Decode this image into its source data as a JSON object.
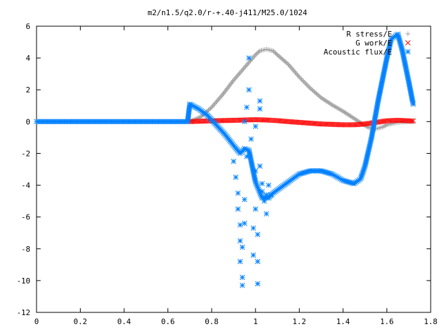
{
  "chart_data": {
    "type": "scatter",
    "title": "m2/n1.5/q2.0/r-+.40-j411/M25.0/1024",
    "xlabel": "",
    "ylabel": "",
    "xlim": [
      0,
      1.8
    ],
    "ylim": [
      -12,
      6
    ],
    "x_ticks": [
      "0",
      "0.2",
      "0.4",
      "0.6",
      "0.8",
      "1",
      "1.2",
      "1.4",
      "1.6",
      "1.8"
    ],
    "y_ticks": [
      "6",
      "4",
      "2",
      "0",
      "-2",
      "-4",
      "-6",
      "-8",
      "-10",
      "-12"
    ],
    "grid": false,
    "legend_position": "top-right",
    "series": [
      {
        "name": "R stress/E",
        "marker": "plus",
        "color": "#a0a0a0",
        "x": [
          0.7,
          0.75,
          0.8,
          0.85,
          0.9,
          0.95,
          1.0,
          1.02,
          1.05,
          1.08,
          1.1,
          1.15,
          1.2,
          1.25,
          1.3,
          1.35,
          1.4,
          1.45,
          1.5,
          1.52,
          1.55,
          1.58,
          1.6,
          1.65,
          1.7,
          1.72
        ],
        "y": [
          0.0,
          0.3,
          0.9,
          1.7,
          2.6,
          3.4,
          4.2,
          4.45,
          4.55,
          4.45,
          4.2,
          3.6,
          2.8,
          2.1,
          1.5,
          1.05,
          0.65,
          0.2,
          -0.25,
          -0.4,
          -0.45,
          -0.35,
          -0.2,
          -0.05,
          0.0,
          0.0
        ]
      },
      {
        "name": "G work/E",
        "marker": "cross",
        "color": "#ff0000",
        "x": [
          0.7,
          0.8,
          0.9,
          0.95,
          1.0,
          1.05,
          1.1,
          1.15,
          1.2,
          1.3,
          1.4,
          1.45,
          1.5,
          1.55,
          1.6,
          1.65,
          1.7,
          1.72
        ],
        "y": [
          0.0,
          0.05,
          0.08,
          0.1,
          0.12,
          0.1,
          0.06,
          0.0,
          -0.05,
          -0.15,
          -0.2,
          -0.2,
          -0.15,
          -0.05,
          0.05,
          0.08,
          0.05,
          0.04
        ]
      },
      {
        "name": "Acoustic flux/E",
        "marker": "star",
        "color": "#0080ff",
        "x": [
          0.0,
          0.1,
          0.2,
          0.3,
          0.4,
          0.5,
          0.6,
          0.69,
          0.7,
          0.74,
          0.78,
          0.82,
          0.86,
          0.9,
          0.93,
          0.95,
          0.97,
          1.0,
          1.03,
          1.06,
          1.08,
          1.12,
          1.16,
          1.2,
          1.25,
          1.3,
          1.35,
          1.4,
          1.45,
          1.48,
          1.5,
          1.53,
          1.56,
          1.6,
          1.62,
          1.65,
          1.67,
          1.7,
          1.72
        ],
        "y": [
          0.0,
          0.0,
          0.0,
          0.0,
          0.0,
          0.0,
          0.0,
          0.0,
          1.1,
          0.8,
          0.4,
          -0.2,
          -0.8,
          -1.5,
          -2.0,
          -1.7,
          -1.8,
          -3.8,
          -4.8,
          -4.8,
          -4.5,
          -4.1,
          -3.7,
          -3.3,
          -3.1,
          -3.1,
          -3.3,
          -3.7,
          -3.9,
          -3.6,
          -2.8,
          -1.0,
          1.3,
          4.0,
          5.2,
          5.5,
          4.5,
          2.5,
          1.1
        ]
      },
      {
        "name": "Acoustic flux/E",
        "marker": "star",
        "color": "#0080ff",
        "x": [
          0.9,
          0.91,
          0.92,
          0.92,
          0.93,
          0.93,
          0.93,
          0.94,
          0.94,
          0.94,
          0.95,
          0.95,
          0.95,
          0.96,
          0.96,
          0.97,
          0.97,
          0.98,
          0.99,
          0.99,
          1.0,
          1.0,
          1.0,
          1.01,
          1.01,
          1.01,
          1.02,
          1.02,
          1.02,
          1.03,
          1.03,
          1.04,
          1.05,
          1.05,
          1.06,
          1.07
        ],
        "y": [
          -2.5,
          -3.5,
          -4.5,
          -5.5,
          -6.5,
          -7.5,
          -8.8,
          -10.3,
          -9.8,
          -7.9,
          -6.4,
          -4.9,
          0.0,
          -2.2,
          0.9,
          2.0,
          4.0,
          -1.1,
          -6.7,
          -8.4,
          -5.5,
          -3.1,
          -0.3,
          -7.1,
          -8.8,
          -10.2,
          1.3,
          0.8,
          -2.8,
          -3.9,
          -4.4,
          -5.0,
          -5.8,
          -4.6,
          -4.0,
          -4.6
        ]
      }
    ]
  }
}
